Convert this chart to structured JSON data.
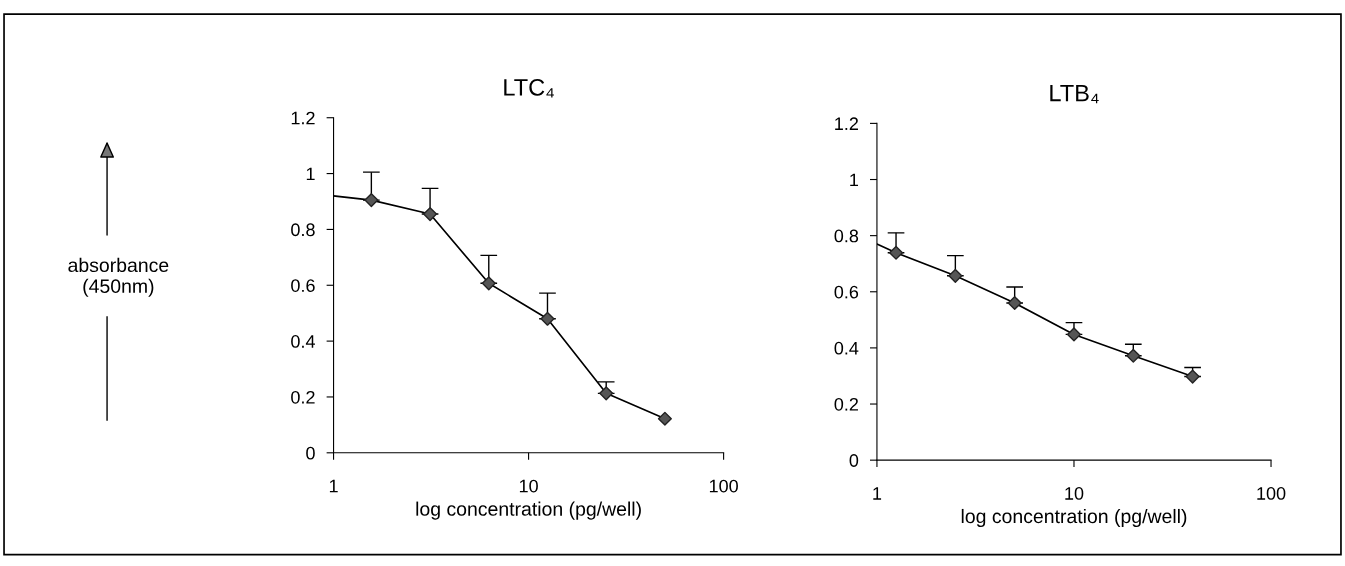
{
  "chart_data": [
    {
      "type": "line",
      "title": "LTC₄",
      "xlabel": "log concentration (pg/well)",
      "ylabel": "absorbance\n(450nm)",
      "log": "x",
      "xlim": [
        1,
        100
      ],
      "xticks": [
        1,
        10,
        100
      ],
      "ylim": [
        0,
        1.2
      ],
      "yticks": [
        0,
        0.2,
        0.4,
        0.6,
        0.8,
        1,
        1.2
      ],
      "grid": false,
      "legend": false,
      "series": [
        {
          "color": "#000000",
          "marker": "none",
          "x": [
            1,
            1.5625,
            3.125,
            6.25,
            12.5,
            25,
            50
          ],
          "values": [
            0.92,
            0.905,
            0.855,
            0.607,
            0.48,
            0.213,
            0.122
          ]
        },
        {
          "type": "scatter",
          "color": "#555555",
          "marker": "diamond",
          "x": [
            1.5625,
            3.125,
            6.25,
            12.5,
            25,
            50
          ],
          "values": [
            0.905,
            0.855,
            0.607,
            0.48,
            0.213,
            0.122
          ],
          "errors": [
            [
              0.905,
              1.005
            ],
            [
              0.855,
              0.947
            ],
            [
              0.607,
              0.707
            ],
            [
              0.48,
              0.572
            ],
            [
              0.213,
              0.254
            ],
            null
          ]
        }
      ]
    },
    {
      "type": "line",
      "title": "LTB₄",
      "xlabel": "log concentration (pg/well)",
      "log": "x",
      "xlim": [
        1,
        100
      ],
      "xticks": [
        1,
        10,
        100
      ],
      "ylim": [
        0,
        1.2
      ],
      "yticks": [
        0,
        0.2,
        0.4,
        0.6,
        0.8,
        1,
        1.2
      ],
      "grid": false,
      "legend": false,
      "series": [
        {
          "color": "#000000",
          "marker": "none",
          "x": [
            1,
            1.25,
            2.5,
            5,
            10,
            20,
            40
          ],
          "values": [
            0.77,
            0.739,
            0.657,
            0.56,
            0.448,
            0.372,
            0.298
          ]
        },
        {
          "type": "scatter",
          "color": "#555555",
          "marker": "diamond",
          "x": [
            1.25,
            2.5,
            5,
            10,
            20,
            40
          ],
          "values": [
            0.739,
            0.657,
            0.56,
            0.448,
            0.372,
            0.298
          ],
          "errors": [
            [
              0.739,
              0.81
            ],
            [
              0.657,
              0.729
            ],
            [
              0.56,
              0.617
            ],
            [
              0.448,
              0.49
            ],
            [
              0.372,
              0.413
            ],
            [
              0.298,
              0.33
            ]
          ]
        }
      ]
    }
  ]
}
